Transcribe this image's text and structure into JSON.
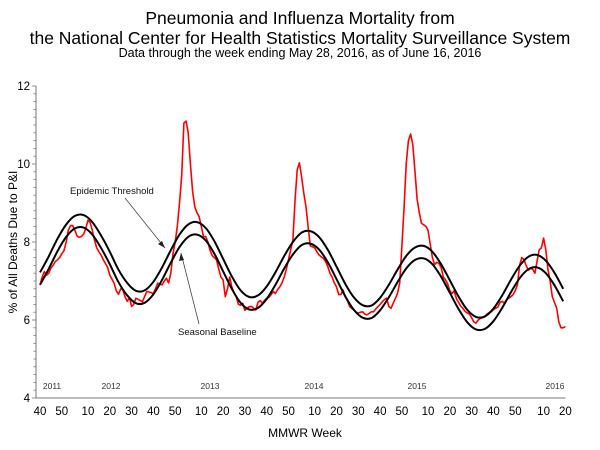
{
  "chart_data": {
    "type": "line",
    "title": "Pneumonia and Influenza Mortality from",
    "title_line2": "the National Center for Health Statistics Mortality Surveillance System",
    "subtitle": "Data through the week ending May 28, 2016, as of June 16, 2016",
    "xlabel": "MMWR Week",
    "ylabel": "% of All Deaths Due to P&I",
    "ylim": [
      4,
      12
    ],
    "y_ticks": [
      "4",
      "6",
      "8",
      "10",
      "12"
    ],
    "x_range": [
      "2011-40",
      "2016-20"
    ],
    "x_ticks": [
      {
        "label": "40",
        "week": "2011-40"
      },
      {
        "label": "50",
        "week": "2011-50"
      },
      {
        "label": "10",
        "week": "2012-10"
      },
      {
        "label": "20",
        "week": "2012-20"
      },
      {
        "label": "30",
        "week": "2012-30"
      },
      {
        "label": "40",
        "week": "2012-40"
      },
      {
        "label": "50",
        "week": "2012-50"
      },
      {
        "label": "10",
        "week": "2013-10"
      },
      {
        "label": "20",
        "week": "2013-20"
      },
      {
        "label": "30",
        "week": "2013-30"
      },
      {
        "label": "40",
        "week": "2013-40"
      },
      {
        "label": "50",
        "week": "2013-50"
      },
      {
        "label": "10",
        "week": "2014-10"
      },
      {
        "label": "20",
        "week": "2014-20"
      },
      {
        "label": "30",
        "week": "2014-30"
      },
      {
        "label": "40",
        "week": "2014-40"
      },
      {
        "label": "50",
        "week": "2014-50"
      },
      {
        "label": "10",
        "week": "2015-10"
      },
      {
        "label": "20",
        "week": "2015-20"
      },
      {
        "label": "30",
        "week": "2015-30"
      },
      {
        "label": "40",
        "week": "2015-40"
      },
      {
        "label": "50",
        "week": "2015-50"
      },
      {
        "label": "10",
        "week": "2016-10"
      },
      {
        "label": "20",
        "week": "2016-20"
      }
    ],
    "year_labels": [
      "2011",
      "2012",
      "2013",
      "2014",
      "2015",
      "2016"
    ],
    "grid": false,
    "annotations": [
      "Epidemic Threshold",
      "Seasonal Baseline"
    ],
    "series": [
      {
        "role": "observed",
        "color": "#ff0000",
        "start_week": "2011-40",
        "interval_weeks": 1,
        "values": [
          6.9,
          7.1,
          7.24,
          7.15,
          7.2,
          7.33,
          7.4,
          7.5,
          7.54,
          7.6,
          7.7,
          7.78,
          8.0,
          8.3,
          8.42,
          8.42,
          8.3,
          8.15,
          8.12,
          8.14,
          8.2,
          8.35,
          8.56,
          8.5,
          8.3,
          8.05,
          7.85,
          7.75,
          7.67,
          7.55,
          7.45,
          7.35,
          7.15,
          7.05,
          6.94,
          6.75,
          6.66,
          6.8,
          6.78,
          6.6,
          6.48,
          6.58,
          6.35,
          6.4,
          6.56,
          6.53,
          6.5,
          6.47,
          6.6,
          6.73,
          6.72,
          6.7,
          6.68,
          6.8,
          6.94,
          6.92,
          6.9,
          7.0,
          7.07,
          6.95,
          7.2,
          7.7,
          8.0,
          8.4,
          9.0,
          9.7,
          11.05,
          11.1,
          10.8,
          10.0,
          9.3,
          8.9,
          8.75,
          8.65,
          8.4,
          8.14,
          8.14,
          8.0,
          7.79,
          7.65,
          7.6,
          7.54,
          7.3,
          7.1,
          7.03,
          6.6,
          6.8,
          7.1,
          6.85,
          6.7,
          6.6,
          6.4,
          6.38,
          6.43,
          6.25,
          6.3,
          6.34,
          6.35,
          6.3,
          6.26,
          6.45,
          6.5,
          6.43,
          6.5,
          6.56,
          6.58,
          6.65,
          6.73,
          6.68,
          6.78,
          6.85,
          6.95,
          7.1,
          7.3,
          7.55,
          7.8,
          8.05,
          9.1,
          9.85,
          10.03,
          9.67,
          9.25,
          8.9,
          8.4,
          7.9,
          7.88,
          7.85,
          7.75,
          7.67,
          7.62,
          7.58,
          7.5,
          7.37,
          7.2,
          7.1,
          6.95,
          6.85,
          6.65,
          6.65,
          6.77,
          6.6,
          6.5,
          6.35,
          6.3,
          6.26,
          6.2,
          6.18,
          6.2,
          6.21,
          6.15,
          6.13,
          6.17,
          6.21,
          6.21,
          6.28,
          6.34,
          6.4,
          6.47,
          6.52,
          6.56,
          6.35,
          6.3,
          6.43,
          6.55,
          6.68,
          6.95,
          7.9,
          8.9,
          10.0,
          10.6,
          10.77,
          10.5,
          9.8,
          9.1,
          8.75,
          8.48,
          8.44,
          8.4,
          8.3,
          7.95,
          7.6,
          7.42,
          7.48,
          7.45,
          7.35,
          7.1,
          7.03,
          6.92,
          6.75,
          6.68,
          6.75,
          6.55,
          6.45,
          6.36,
          6.3,
          6.22,
          6.18,
          6.15,
          6.06,
          5.95,
          5.92,
          6.0,
          6.04,
          6.06,
          6.08,
          6.15,
          6.19,
          6.21,
          6.27,
          6.3,
          6.33,
          6.45,
          6.48,
          6.43,
          6.52,
          6.56,
          6.6,
          6.65,
          6.75,
          6.9,
          7.4,
          7.6,
          7.55,
          7.4,
          7.28,
          7.32,
          7.3,
          7.2,
          7.5,
          7.8,
          7.85,
          8.1,
          7.8,
          7.3,
          7.0,
          6.6,
          6.45,
          6.3,
          5.95,
          5.8,
          5.8,
          5.83
        ]
      },
      {
        "name": "Epidemic Threshold",
        "color": "#000000",
        "start_week": "2011-40",
        "interval_weeks": 4,
        "values": [
          7.22,
          7.63,
          8.08,
          8.45,
          8.67,
          8.69,
          8.51,
          8.17,
          7.75,
          7.29,
          6.95,
          6.75,
          6.76,
          6.98,
          7.35,
          7.79,
          8.19,
          8.45,
          8.51,
          8.36,
          8.02,
          7.57,
          7.12,
          6.76,
          6.59,
          6.63,
          6.86,
          7.22,
          7.64,
          8.0,
          8.24,
          8.28,
          8.13,
          7.8,
          7.37,
          6.93,
          6.58,
          6.38,
          6.37,
          6.57,
          6.9,
          7.29,
          7.64,
          7.86,
          7.9,
          7.75,
          7.43,
          7.02,
          6.6,
          6.26,
          6.08,
          6.09,
          6.29,
          6.63,
          7.03,
          7.39,
          7.62,
          7.67,
          7.52,
          7.21,
          6.8
        ]
      },
      {
        "name": "Seasonal Baseline",
        "color": "#000000",
        "start_week": "2011-40",
        "interval_weeks": 4,
        "values": [
          6.9,
          7.31,
          7.76,
          8.13,
          8.35,
          8.37,
          8.19,
          7.85,
          7.43,
          6.97,
          6.63,
          6.43,
          6.44,
          6.66,
          7.03,
          7.47,
          7.87,
          8.13,
          8.19,
          8.04,
          7.7,
          7.25,
          6.8,
          6.44,
          6.27,
          6.31,
          6.54,
          6.9,
          7.32,
          7.68,
          7.92,
          7.96,
          7.81,
          7.48,
          7.05,
          6.61,
          6.26,
          6.06,
          6.05,
          6.25,
          6.58,
          6.97,
          7.32,
          7.54,
          7.58,
          7.43,
          7.11,
          6.7,
          6.28,
          5.94,
          5.76,
          5.77,
          5.97,
          6.31,
          6.71,
          7.07,
          7.3,
          7.35,
          7.2,
          6.89,
          6.48
        ]
      }
    ]
  }
}
